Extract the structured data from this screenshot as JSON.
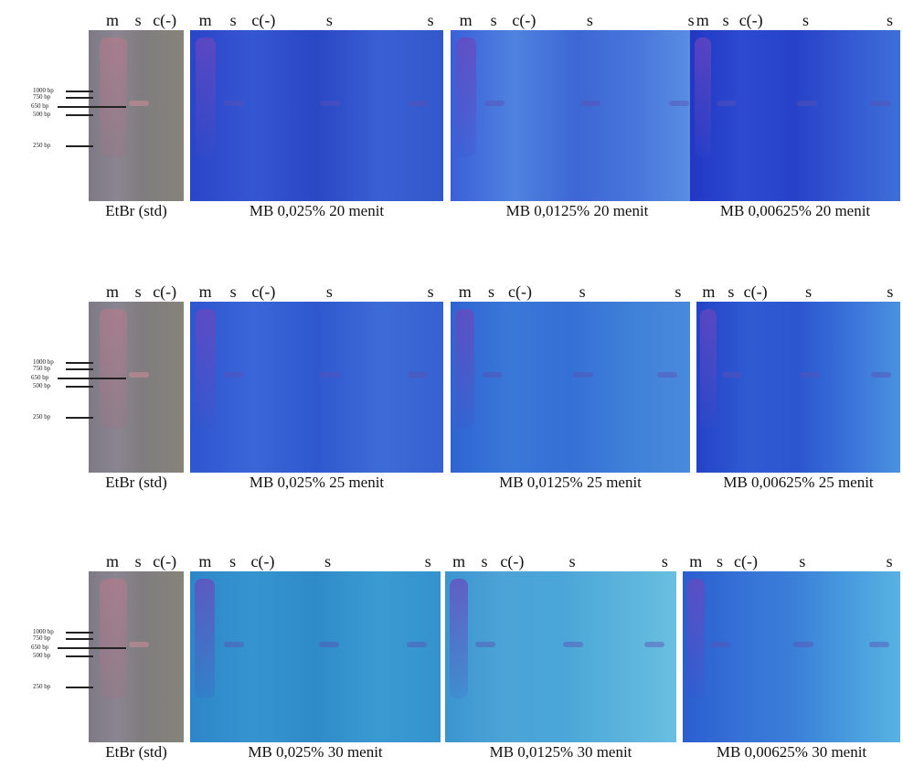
{
  "figure": {
    "rows": [
      {
        "panels": [
          {
            "lanes": [
              "m",
              "s",
              "c(-)"
            ],
            "markers": [
              "1000 bp",
              "750 bp",
              "650 bp",
              "500 bp",
              "250 bp"
            ],
            "caption": "EtBr (std)"
          },
          {
            "lanes": [
              "m",
              "s",
              "c(-)",
              "s",
              "s"
            ],
            "caption": "MB 0,025% 20 menit"
          },
          {
            "lanes": [
              "m",
              "s",
              "c(-)",
              "s",
              "s"
            ],
            "caption": "MB 0,0125% 20 menit"
          },
          {
            "lanes": [
              "m",
              "s",
              "c(-)",
              "s",
              "s"
            ],
            "caption": "MB 0,00625% 20 menit"
          }
        ]
      },
      {
        "panels": [
          {
            "lanes": [
              "m",
              "s",
              "c(-)"
            ],
            "markers": [
              "1000 bp",
              "750 bp",
              "650 bp",
              "500 bp",
              "250 bp"
            ],
            "caption": "EtBr (std)"
          },
          {
            "lanes": [
              "m",
              "s",
              "c(-)",
              "s",
              "s"
            ],
            "caption": "MB 0,025% 25 menit"
          },
          {
            "lanes": [
              "m",
              "s",
              "c(-)",
              "s",
              "s"
            ],
            "caption": "MB 0,0125% 25 menit"
          },
          {
            "lanes": [
              "m",
              "s",
              "c(-)",
              "s",
              "s"
            ],
            "caption": "MB 0,00625% 25 menit"
          }
        ]
      },
      {
        "panels": [
          {
            "lanes": [
              "m",
              "s",
              "c(-)"
            ],
            "markers": [
              "1000 bp",
              "750 bp",
              "650 bp",
              "500 bp",
              "250 bp"
            ],
            "caption": "EtBr (std)"
          },
          {
            "lanes": [
              "m",
              "s",
              "c(-)",
              "s",
              "s"
            ],
            "caption": "MB 0,025% 30 menit"
          },
          {
            "lanes": [
              "m",
              "s",
              "c(-)",
              "s",
              "s"
            ],
            "caption": "MB 0,0125% 30 menit"
          },
          {
            "lanes": [
              "m",
              "s",
              "c(-)",
              "s",
              "s"
            ],
            "caption": "MB 0,00625% 30 menit"
          }
        ]
      }
    ]
  }
}
